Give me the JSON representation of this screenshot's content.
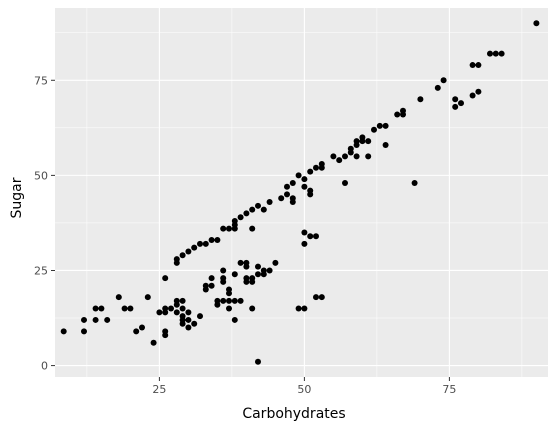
{
  "chart_data": {
    "type": "scatter",
    "title": "",
    "xlabel": "Carbohydrates",
    "ylabel": "Sugar",
    "xlim": [
      7,
      92
    ],
    "ylim": [
      -3,
      94
    ],
    "x_ticks": [
      25,
      50,
      75
    ],
    "y_ticks": [
      0,
      25,
      50,
      75
    ],
    "x_tick_labels": [
      "25",
      "50",
      "75"
    ],
    "y_tick_labels": [
      "0",
      "25",
      "50",
      "75"
    ],
    "grid": true,
    "legend": "none",
    "colors": {
      "panel": "#ebebeb",
      "grid": "#ffffff",
      "point": "#000000"
    },
    "points": [
      [
        8.5,
        9
      ],
      [
        12,
        12
      ],
      [
        12,
        9
      ],
      [
        14,
        15
      ],
      [
        14,
        12
      ],
      [
        15,
        15
      ],
      [
        16,
        12
      ],
      [
        18,
        18
      ],
      [
        19,
        15
      ],
      [
        20,
        15
      ],
      [
        21,
        9
      ],
      [
        22,
        10
      ],
      [
        23,
        18
      ],
      [
        24,
        6
      ],
      [
        25,
        14
      ],
      [
        26,
        23
      ],
      [
        26,
        15
      ],
      [
        26,
        14
      ],
      [
        26,
        9
      ],
      [
        26,
        8
      ],
      [
        27,
        15
      ],
      [
        28,
        28
      ],
      [
        28,
        27
      ],
      [
        28,
        17
      ],
      [
        28,
        16
      ],
      [
        28,
        14
      ],
      [
        29,
        29
      ],
      [
        29,
        17
      ],
      [
        29,
        15
      ],
      [
        29,
        13
      ],
      [
        29,
        12
      ],
      [
        29,
        11
      ],
      [
        30,
        30
      ],
      [
        30,
        14
      ],
      [
        30,
        12
      ],
      [
        30,
        10
      ],
      [
        31,
        31
      ],
      [
        31,
        11
      ],
      [
        32,
        32
      ],
      [
        32,
        13
      ],
      [
        33,
        32
      ],
      [
        33,
        21
      ],
      [
        33,
        20
      ],
      [
        34,
        33
      ],
      [
        34,
        23
      ],
      [
        34,
        21
      ],
      [
        35,
        33
      ],
      [
        35,
        17
      ],
      [
        35,
        16
      ],
      [
        36,
        36
      ],
      [
        36,
        25
      ],
      [
        36,
        23
      ],
      [
        36,
        22
      ],
      [
        36,
        17
      ],
      [
        37,
        36
      ],
      [
        37,
        20
      ],
      [
        37,
        19
      ],
      [
        37,
        17
      ],
      [
        37,
        15
      ],
      [
        38,
        38
      ],
      [
        38,
        37
      ],
      [
        38,
        36
      ],
      [
        38,
        24
      ],
      [
        38,
        17
      ],
      [
        38,
        12
      ],
      [
        39,
        39
      ],
      [
        39,
        27
      ],
      [
        39,
        17
      ],
      [
        40,
        40
      ],
      [
        40,
        27
      ],
      [
        40,
        26
      ],
      [
        40,
        23
      ],
      [
        40,
        22
      ],
      [
        41,
        41
      ],
      [
        41,
        36
      ],
      [
        41,
        23
      ],
      [
        41,
        22
      ],
      [
        41,
        15
      ],
      [
        42,
        42
      ],
      [
        42,
        26
      ],
      [
        42,
        24
      ],
      [
        42,
        1
      ],
      [
        43,
        41
      ],
      [
        43,
        25
      ],
      [
        43,
        24
      ],
      [
        44,
        43
      ],
      [
        44,
        25
      ],
      [
        45,
        27
      ],
      [
        46,
        44
      ],
      [
        47,
        47
      ],
      [
        47,
        45
      ],
      [
        48,
        48
      ],
      [
        48,
        43
      ],
      [
        48,
        44
      ],
      [
        49,
        50
      ],
      [
        49,
        15
      ],
      [
        50,
        49
      ],
      [
        50,
        47
      ],
      [
        50,
        35
      ],
      [
        50,
        32
      ],
      [
        50,
        15
      ],
      [
        51,
        51
      ],
      [
        51,
        46
      ],
      [
        51,
        45
      ],
      [
        51,
        34
      ],
      [
        52,
        52
      ],
      [
        52,
        34
      ],
      [
        52,
        18
      ],
      [
        53,
        53
      ],
      [
        53,
        52
      ],
      [
        53,
        18
      ],
      [
        55,
        55
      ],
      [
        56,
        54
      ],
      [
        57,
        55
      ],
      [
        57,
        48
      ],
      [
        58,
        57
      ],
      [
        58,
        56
      ],
      [
        59,
        59
      ],
      [
        59,
        58
      ],
      [
        59,
        55
      ],
      [
        60,
        59
      ],
      [
        60,
        60
      ],
      [
        61,
        59
      ],
      [
        61,
        55
      ],
      [
        62,
        62
      ],
      [
        63,
        63
      ],
      [
        64,
        63
      ],
      [
        64,
        58
      ],
      [
        66,
        66
      ],
      [
        67,
        67
      ],
      [
        67,
        66
      ],
      [
        69,
        48
      ],
      [
        70,
        70
      ],
      [
        73,
        73
      ],
      [
        74,
        75
      ],
      [
        76,
        70
      ],
      [
        76,
        68
      ],
      [
        77,
        69
      ],
      [
        79,
        79
      ],
      [
        79,
        71
      ],
      [
        80,
        79
      ],
      [
        80,
        72
      ],
      [
        82,
        82
      ],
      [
        83,
        82
      ],
      [
        84,
        82
      ],
      [
        90,
        90
      ]
    ]
  }
}
